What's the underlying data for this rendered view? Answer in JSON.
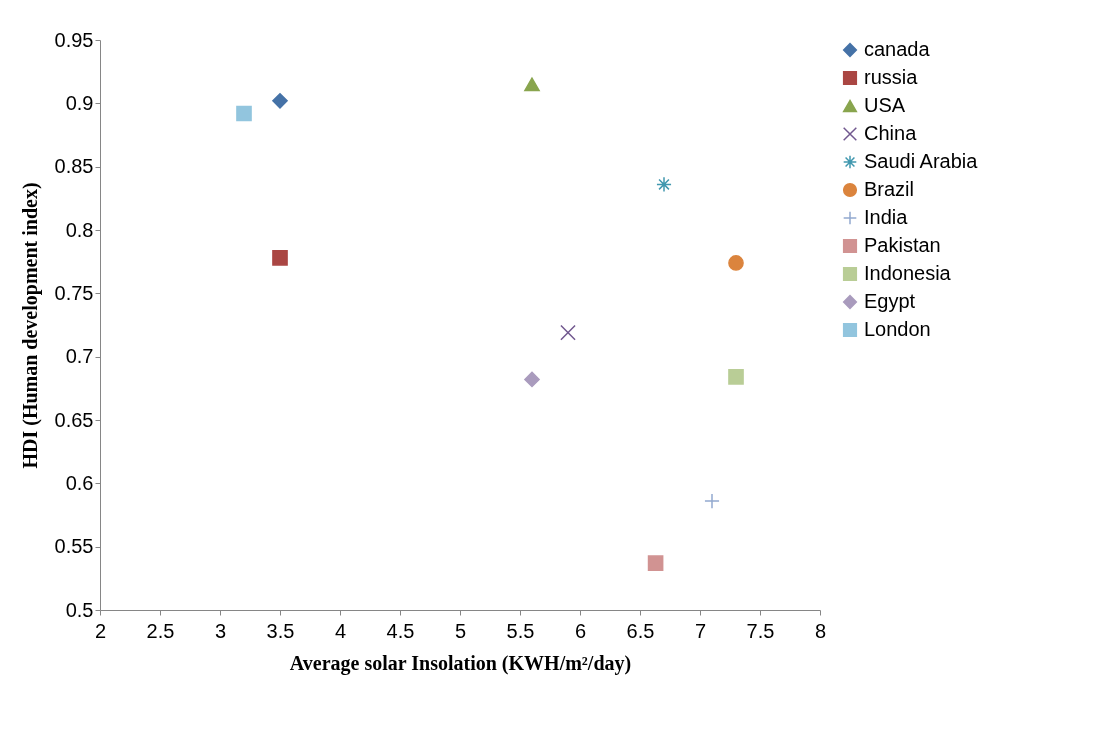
{
  "chart_data": {
    "type": "scatter",
    "xlabel": "Average solar Insolation (KWH/m²/day)",
    "ylabel": "HDI (Human development index)",
    "xlim": [
      2,
      8
    ],
    "xticks": [
      2,
      2.5,
      3,
      3.5,
      4,
      4.5,
      5,
      5.5,
      6,
      6.5,
      7,
      7.5,
      8
    ],
    "ylim": [
      0.5,
      0.95
    ],
    "yticks": [
      0.5,
      0.55,
      0.6,
      0.65,
      0.7,
      0.75,
      0.8,
      0.85,
      0.9,
      0.95
    ],
    "grid": false,
    "legend": "right",
    "series": [
      {
        "name": "canada",
        "color": "#4572a7",
        "marker": "diamond",
        "x": [
          3.5
        ],
        "values": [
          0.902
        ]
      },
      {
        "name": "russia",
        "color": "#aa4643",
        "marker": "square",
        "x": [
          3.5
        ],
        "values": [
          0.778
        ]
      },
      {
        "name": "USA",
        "color": "#89a54e",
        "marker": "triangle",
        "x": [
          5.6
        ],
        "values": [
          0.915
        ]
      },
      {
        "name": "China",
        "color": "#71588f",
        "marker": "cross",
        "x": [
          5.9
        ],
        "values": [
          0.719
        ]
      },
      {
        "name": "Saudi Arabia",
        "color": "#4198af",
        "marker": "cross",
        "x": [
          6.7
        ],
        "values": [
          0.836
        ]
      },
      {
        "name": "Brazil",
        "color": "#db843d",
        "marker": "circle",
        "x": [
          7.3
        ],
        "values": [
          0.774
        ]
      },
      {
        "name": "India",
        "color": "#93a9cf",
        "marker": "cross",
        "x": [
          7.1
        ],
        "values": [
          0.586
        ]
      },
      {
        "name": "Pakistan",
        "color": "#d19392",
        "marker": "square",
        "x": [
          6.63
        ],
        "values": [
          0.537
        ]
      },
      {
        "name": "Indonesia",
        "color": "#b9cd96",
        "marker": "square",
        "x": [
          7.3
        ],
        "values": [
          0.684
        ]
      },
      {
        "name": "Egypt",
        "color": "#a99bbd",
        "marker": "diamond",
        "x": [
          5.6
        ],
        "values": [
          0.682
        ]
      },
      {
        "name": "London",
        "color": "#92c5de",
        "marker": "square",
        "x": [
          3.2
        ],
        "values": [
          0.892
        ]
      }
    ]
  }
}
